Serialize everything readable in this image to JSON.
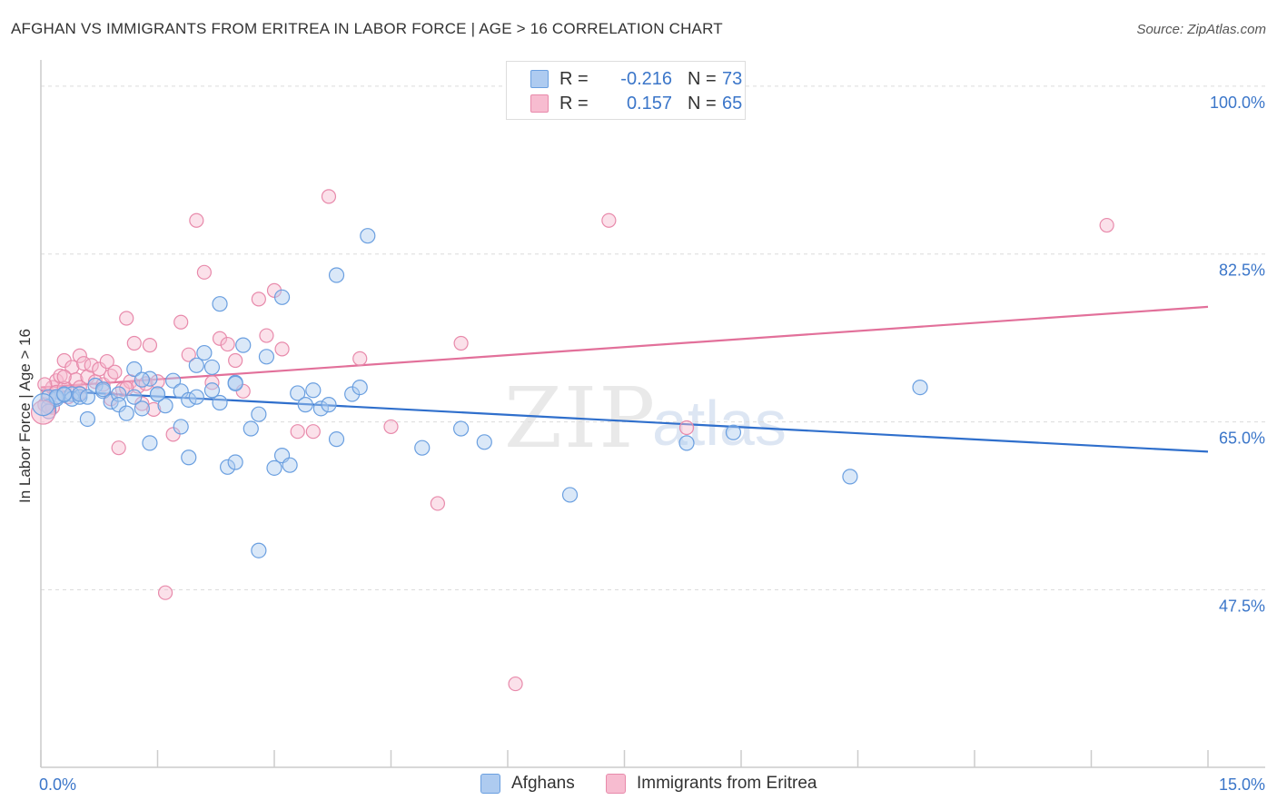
{
  "title": "AFGHAN VS IMMIGRANTS FROM ERITREA IN LABOR FORCE | AGE > 16 CORRELATION CHART",
  "source": "Source: ZipAtlas.com",
  "watermark": {
    "zip": "ZIP",
    "atlas": "atlas"
  },
  "legend_top": {
    "rows": [
      {
        "r_label": "R =",
        "r_value": "-0.216",
        "n_label": "N =",
        "n_value": "73",
        "fill": "#aecbf0",
        "stroke": "#6a9fe0"
      },
      {
        "r_label": "R =",
        "r_value": "0.157",
        "n_label": "N =",
        "n_value": "65",
        "fill": "#f7bcd0",
        "stroke": "#e88aab"
      }
    ]
  },
  "legend_bottom": [
    {
      "label": "Afghans",
      "fill": "#aecbf0",
      "stroke": "#6a9fe0"
    },
    {
      "label": "Immigrants from Eritrea",
      "fill": "#f7bcd0",
      "stroke": "#e88aab"
    }
  ],
  "chart_data": {
    "type": "scatter",
    "title": "AFGHAN VS IMMIGRANTS FROM ERITREA IN LABOR FORCE | AGE > 16 CORRELATION CHART",
    "xlabel": "",
    "ylabel": "In Labor Force | Age > 16",
    "xlim": [
      0,
      15
    ],
    "ylim": [
      29,
      101.5
    ],
    "x_tick_labels": [
      {
        "value": 0,
        "label": "0.0%"
      },
      {
        "value": 15,
        "label": "15.0%"
      }
    ],
    "y_tick_labels": [
      {
        "value": 100,
        "label": "100.0%"
      },
      {
        "value": 82.5,
        "label": "82.5%"
      },
      {
        "value": 65,
        "label": "65.0%"
      },
      {
        "value": 47.5,
        "label": "47.5%"
      }
    ],
    "y_gridlines": [
      100,
      82.5,
      65,
      47.5
    ],
    "series": [
      {
        "name": "Afghans",
        "color": "#6a9fe0",
        "fill": "#aecbf0",
        "line_color": "#2f6fcc",
        "trend": {
          "x": [
            0,
            15
          ],
          "y": [
            68.3,
            61.9
          ]
        },
        "x": [
          0.1,
          0.1,
          0.2,
          0.2,
          0.3,
          0.4,
          0.4,
          0.5,
          0.6,
          0.7,
          0.8,
          0.9,
          1.0,
          1.0,
          1.1,
          1.2,
          1.2,
          1.3,
          1.4,
          1.4,
          1.5,
          1.6,
          1.7,
          1.8,
          1.8,
          1.9,
          1.9,
          2.0,
          2.0,
          2.1,
          2.2,
          2.2,
          2.3,
          2.3,
          2.4,
          2.5,
          2.5,
          2.6,
          2.7,
          2.8,
          2.8,
          2.9,
          3.0,
          3.1,
          3.2,
          3.3,
          3.4,
          3.5,
          3.6,
          3.7,
          3.8,
          3.8,
          4.0,
          4.1,
          4.2,
          4.9,
          5.4,
          5.7,
          6.8,
          8.3,
          8.9,
          10.4,
          11.3,
          0.1,
          0.2,
          0.3,
          0.5,
          0.6,
          0.8,
          1.3,
          1.5,
          2.5,
          3.1
        ],
        "y": [
          67.6,
          66.6,
          67.4,
          67.6,
          67.8,
          67.9,
          67.4,
          67.6,
          65.3,
          68.8,
          68.2,
          67.1,
          67.9,
          66.8,
          65.9,
          67.6,
          70.5,
          66.4,
          69.5,
          62.8,
          67.9,
          66.7,
          69.3,
          68.2,
          64.5,
          67.3,
          61.3,
          67.6,
          70.9,
          72.2,
          68.3,
          70.7,
          77.3,
          67.0,
          60.3,
          69.1,
          60.8,
          73.0,
          64.3,
          65.8,
          51.6,
          71.8,
          60.2,
          61.5,
          60.5,
          68.0,
          66.8,
          68.3,
          66.4,
          66.8,
          63.2,
          80.3,
          67.9,
          68.6,
          84.4,
          62.3,
          64.3,
          62.9,
          57.4,
          62.8,
          63.9,
          59.3,
          68.6,
          66.1,
          67.6,
          67.9,
          67.9,
          67.6,
          68.4,
          69.4,
          67.9,
          69.0,
          78.0
        ]
      },
      {
        "name": "Immigrants from Eritrea",
        "color": "#e88aab",
        "fill": "#f7bcd0",
        "line_color": "#e2709a",
        "trend": {
          "x": [
            0,
            15
          ],
          "y": [
            68.6,
            77.0
          ]
        },
        "x": [
          0.05,
          0.1,
          0.15,
          0.2,
          0.2,
          0.25,
          0.3,
          0.3,
          0.35,
          0.4,
          0.45,
          0.5,
          0.5,
          0.55,
          0.6,
          0.65,
          0.7,
          0.75,
          0.8,
          0.85,
          0.9,
          0.95,
          1.0,
          1.05,
          1.1,
          1.15,
          1.2,
          1.25,
          1.3,
          1.35,
          1.4,
          1.45,
          1.5,
          1.6,
          1.7,
          1.8,
          1.9,
          2.0,
          2.1,
          2.2,
          2.3,
          2.4,
          2.5,
          2.6,
          2.8,
          2.9,
          3.0,
          3.1,
          3.3,
          3.5,
          3.7,
          4.1,
          4.5,
          5.1,
          5.4,
          6.1,
          7.3,
          8.3,
          13.7,
          0.05,
          0.15,
          0.3,
          0.5,
          0.9,
          1.1
        ],
        "y": [
          66.8,
          67.9,
          68.6,
          69.3,
          68.1,
          69.8,
          71.4,
          68.5,
          67.6,
          70.7,
          69.4,
          71.9,
          68.6,
          71.1,
          69.7,
          70.9,
          69.2,
          70.5,
          68.9,
          71.3,
          69.8,
          70.2,
          62.3,
          68.4,
          75.8,
          69.2,
          73.2,
          68.7,
          66.9,
          69.0,
          73.0,
          66.3,
          69.2,
          47.2,
          63.7,
          75.4,
          72.0,
          86.0,
          80.6,
          69.1,
          73.7,
          73.1,
          71.4,
          68.2,
          77.8,
          74.0,
          78.7,
          72.6,
          64.0,
          64.0,
          88.5,
          71.6,
          64.5,
          56.5,
          73.2,
          37.7,
          86.0,
          64.4,
          85.5,
          68.9,
          66.5,
          69.7,
          68.0,
          67.4,
          68.5
        ]
      }
    ]
  }
}
